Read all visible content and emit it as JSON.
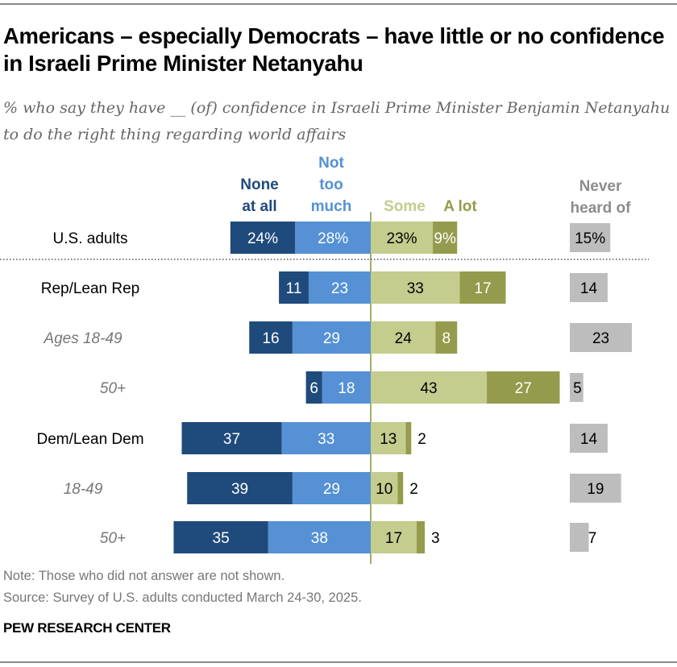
{
  "title": "Americans – especially Democrats – have little or no confidence in Israeli Prime Minister Netanyahu",
  "subtitle": "% who say they have __ (of) confidence in Israeli Prime Minister Benjamin Netanyahu to do the right thing regarding world affairs",
  "note": "Note: Those who did not answer are not shown.",
  "source": "Source: Survey of U.S. adults conducted March 24-30, 2025.",
  "brand": "PEW RESEARCH CENTER",
  "chart_data": {
    "type": "bar",
    "orientation": "horizontal diverging stacked",
    "categories": [
      "U.S. adults",
      "Rep/Lean Rep",
      "Ages 18-49",
      "50+",
      "Dem/Lean Dem",
      "18-49",
      "50+"
    ],
    "category_style": [
      "main",
      "main",
      "sub",
      "sub",
      "main",
      "sub",
      "sub"
    ],
    "series": [
      {
        "name": "None at all",
        "header": [
          "None",
          "at all"
        ],
        "color": "#1f4a7c",
        "side": "left",
        "values": [
          24,
          11,
          16,
          6,
          37,
          39,
          35
        ]
      },
      {
        "name": "Not too much",
        "header": [
          "Not",
          "too",
          "much"
        ],
        "color": "#5591d4",
        "side": "left",
        "values": [
          28,
          23,
          29,
          18,
          33,
          29,
          38
        ]
      },
      {
        "name": "Some",
        "header": [
          "Some"
        ],
        "color": "#c4cc8e",
        "side": "right",
        "values": [
          23,
          33,
          24,
          43,
          13,
          10,
          17
        ]
      },
      {
        "name": "A lot",
        "header": [
          "A lot"
        ],
        "color": "#949b4c",
        "side": "right",
        "values": [
          9,
          17,
          8,
          27,
          2,
          2,
          3
        ]
      },
      {
        "name": "Never heard of",
        "header": [
          "Never",
          "heard of"
        ],
        "color": "#bdbdbd",
        "side": "separate",
        "values": [
          15,
          14,
          23,
          5,
          14,
          19,
          7
        ]
      }
    ],
    "first_row_percent_sign": true,
    "separator_after_first_row": true,
    "unit": "%"
  }
}
